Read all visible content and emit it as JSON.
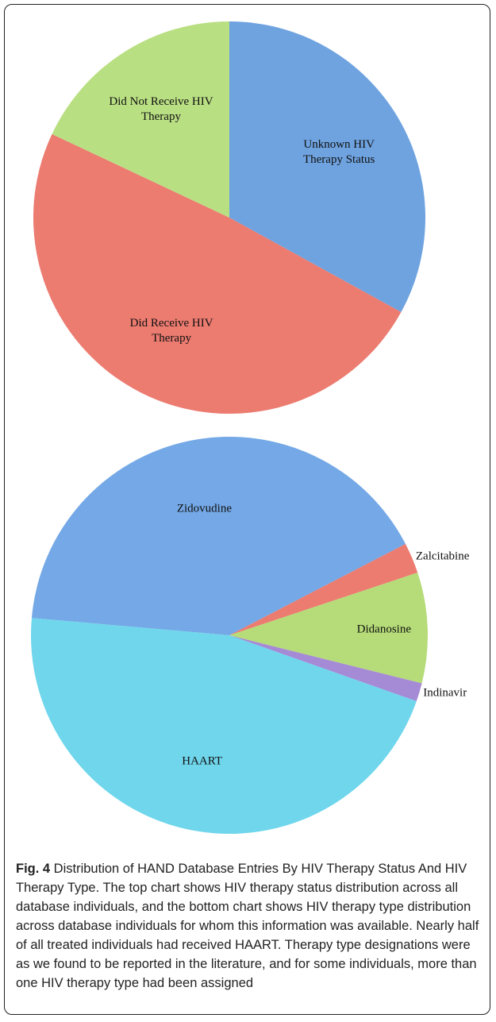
{
  "chart_data": [
    {
      "type": "pie",
      "categories": [
        "Unknown HIV Therapy Status",
        "Did Receive HIV Therapy",
        "Did Not Receive HIV Therapy"
      ],
      "values": [
        33,
        49,
        18
      ],
      "colors": [
        "#6fa3e0",
        "#ec7b70",
        "#b9df83"
      ]
    },
    {
      "type": "pie",
      "categories": [
        "Zidovudine",
        "Zalcitabine",
        "Didanosine",
        "Indinavir",
        "HAART"
      ],
      "values": [
        41,
        2.5,
        9,
        1.5,
        46
      ],
      "colors": [
        "#74a8e6",
        "#ec7b70",
        "#b5dc78",
        "#a58ad6",
        "#6fd6ec"
      ]
    }
  ],
  "caption": {
    "label": "Fig. 4",
    "text": " Distribution of HAND Database Entries By HIV Therapy Status And HIV Therapy Type. The top chart shows HIV therapy status distribution across all database individuals, and the bottom chart shows HIV therapy type distribution across database individuals for whom this information was available. Nearly half of all treated individuals had received HAART. Therapy type designations were as we found to be reported in the literature, and for some individuals, more than one HIV therapy type had been assigned"
  }
}
